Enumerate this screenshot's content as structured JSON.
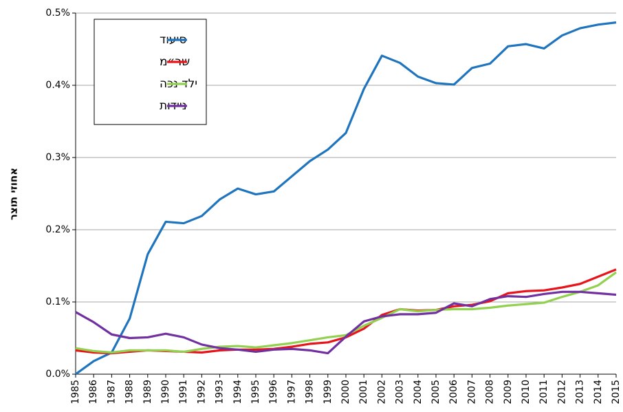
{
  "chart_data": {
    "type": "line",
    "y_label": "אחוזי תוצר",
    "categories": [
      "1985",
      "1986",
      "1987",
      "1988",
      "1989",
      "1990",
      "1991",
      "1992",
      "1993",
      "1994",
      "1995",
      "1996",
      "1997",
      "1998",
      "1999",
      "2000",
      "2001",
      "2002",
      "2003",
      "2004",
      "2005",
      "2006",
      "2007",
      "2008",
      "2009",
      "2010",
      "2011",
      "2012",
      "2013",
      "2014",
      "2015"
    ],
    "series": [
      {
        "name": "סיעוד",
        "color": "#1f74be",
        "values": [
          0.0,
          0.018,
          0.03,
          0.077,
          0.166,
          0.211,
          0.209,
          0.219,
          0.242,
          0.257,
          0.249,
          0.253,
          0.274,
          0.295,
          0.311,
          0.334,
          0.395,
          0.441,
          0.431,
          0.412,
          0.403,
          0.401,
          0.424,
          0.43,
          0.454,
          0.457,
          0.451,
          0.469,
          0.479,
          0.484,
          0.487
        ]
      },
      {
        "name": "שר״מ",
        "color": "#e8141c",
        "values": [
          0.033,
          0.03,
          0.029,
          0.031,
          0.033,
          0.032,
          0.031,
          0.03,
          0.033,
          0.034,
          0.034,
          0.035,
          0.038,
          0.042,
          0.044,
          0.051,
          0.063,
          0.082,
          0.09,
          0.088,
          0.089,
          0.094,
          0.096,
          0.101,
          0.112,
          0.115,
          0.116,
          0.12,
          0.125,
          0.135,
          0.145
        ]
      },
      {
        "name": "ילד נכה",
        "color": "#92d050",
        "values": [
          0.036,
          0.032,
          0.03,
          0.033,
          0.033,
          0.033,
          0.031,
          0.035,
          0.038,
          0.039,
          0.037,
          0.04,
          0.043,
          0.047,
          0.051,
          0.054,
          0.067,
          0.078,
          0.09,
          0.087,
          0.089,
          0.09,
          0.09,
          0.092,
          0.095,
          0.097,
          0.099,
          0.107,
          0.114,
          0.123,
          0.141
        ]
      },
      {
        "name": "ניידות",
        "color": "#7030a0",
        "values": [
          0.086,
          0.072,
          0.055,
          0.05,
          0.051,
          0.056,
          0.051,
          0.041,
          0.036,
          0.034,
          0.031,
          0.034,
          0.035,
          0.033,
          0.029,
          0.052,
          0.073,
          0.08,
          0.083,
          0.083,
          0.085,
          0.098,
          0.094,
          0.104,
          0.108,
          0.107,
          0.111,
          0.114,
          0.114,
          0.112,
          0.11
        ]
      }
    ],
    "ylim": [
      0,
      0.5
    ],
    "yticks": [
      {
        "value": 0,
        "label": "0.0%"
      },
      {
        "value": 0.1,
        "label": "0.1%"
      },
      {
        "value": 0.2,
        "label": "0.2%"
      },
      {
        "value": 0.3,
        "label": "0.3%"
      },
      {
        "value": 0.4,
        "label": "0.4%"
      },
      {
        "value": 0.5,
        "label": "0.5%"
      }
    ],
    "grid": true,
    "legend": "upper left"
  }
}
